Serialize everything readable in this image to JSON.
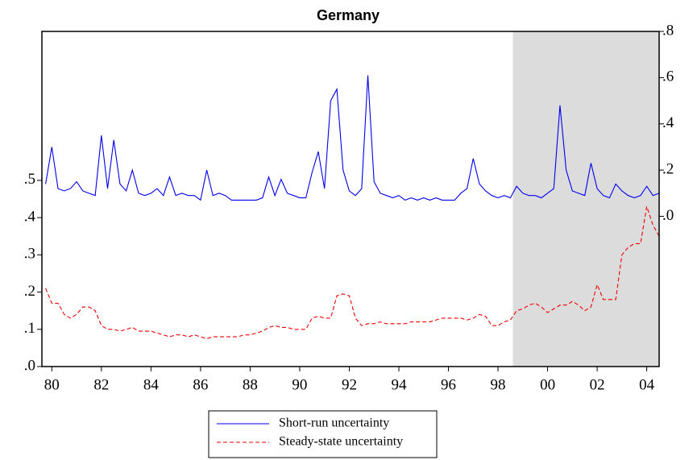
{
  "chart_data": {
    "type": "line",
    "title": "Germany",
    "x": [
      1979.75,
      1980,
      1980.25,
      1980.5,
      1980.75,
      1981,
      1981.25,
      1981.5,
      1981.75,
      1982,
      1982.25,
      1982.5,
      1982.75,
      1983,
      1983.25,
      1983.5,
      1983.75,
      1984,
      1984.25,
      1984.5,
      1984.75,
      1985,
      1985.25,
      1985.5,
      1985.75,
      1986,
      1986.25,
      1986.5,
      1986.75,
      1987,
      1987.25,
      1987.5,
      1987.75,
      1988,
      1988.25,
      1988.5,
      1988.75,
      1989,
      1989.25,
      1989.5,
      1989.75,
      1990,
      1990.25,
      1990.5,
      1990.75,
      1991,
      1991.25,
      1991.5,
      1991.75,
      1992,
      1992.25,
      1992.5,
      1992.75,
      1993,
      1993.25,
      1993.5,
      1993.75,
      1994,
      1994.25,
      1994.5,
      1994.75,
      1995,
      1995.25,
      1995.5,
      1995.75,
      1996,
      1996.25,
      1996.5,
      1996.75,
      1997,
      1997.25,
      1997.5,
      1997.75,
      1998,
      1998.25,
      1998.5,
      1998.75,
      1999,
      1999.25,
      1999.5,
      1999.75,
      2000,
      2000.25,
      2000.5,
      2000.75,
      2001,
      2001.25,
      2001.5,
      2001.75,
      2002,
      2002.25,
      2002.5,
      2002.75,
      2003,
      2003.25,
      2003.5,
      2003.75,
      2004,
      2004.25,
      2004.5
    ],
    "series": [
      {
        "name": "Short-run uncertainty",
        "color": "#0000ee",
        "axis": "y2",
        "dash": false,
        "values": [
          0.14,
          0.3,
          0.12,
          0.11,
          0.12,
          0.15,
          0.11,
          0.1,
          0.09,
          0.35,
          0.12,
          0.33,
          0.14,
          0.11,
          0.2,
          0.1,
          0.09,
          0.1,
          0.12,
          0.09,
          0.17,
          0.09,
          0.1,
          0.09,
          0.09,
          0.07,
          0.2,
          0.09,
          0.1,
          0.09,
          0.07,
          0.07,
          0.07,
          0.07,
          0.07,
          0.08,
          0.17,
          0.09,
          0.16,
          0.1,
          0.09,
          0.08,
          0.08,
          0.19,
          0.28,
          0.12,
          0.5,
          0.55,
          0.2,
          0.11,
          0.09,
          0.12,
          0.61,
          0.15,
          0.1,
          0.09,
          0.08,
          0.09,
          0.07,
          0.08,
          0.07,
          0.08,
          0.07,
          0.08,
          0.07,
          0.07,
          0.07,
          0.1,
          0.12,
          0.25,
          0.14,
          0.11,
          0.09,
          0.08,
          0.09,
          0.08,
          0.13,
          0.1,
          0.09,
          0.09,
          0.08,
          0.1,
          0.12,
          0.48,
          0.2,
          0.11,
          0.1,
          0.09,
          0.23,
          0.12,
          0.09,
          0.08,
          0.14,
          0.11,
          0.09,
          0.08,
          0.09,
          0.13,
          0.09,
          0.1
        ]
      },
      {
        "name": "Steady-state uncertainty",
        "color": "#ee0000",
        "dash": true,
        "values": [
          0.21,
          0.17,
          0.17,
          0.14,
          0.13,
          0.14,
          0.16,
          0.16,
          0.15,
          0.11,
          0.1,
          0.1,
          0.095,
          0.1,
          0.105,
          0.095,
          0.095,
          0.095,
          0.09,
          0.085,
          0.08,
          0.085,
          0.085,
          0.08,
          0.085,
          0.08,
          0.075,
          0.08,
          0.08,
          0.08,
          0.08,
          0.08,
          0.085,
          0.085,
          0.09,
          0.095,
          0.105,
          0.11,
          0.105,
          0.105,
          0.1,
          0.1,
          0.1,
          0.13,
          0.135,
          0.13,
          0.13,
          0.19,
          0.195,
          0.19,
          0.13,
          0.11,
          0.115,
          0.115,
          0.12,
          0.115,
          0.115,
          0.115,
          0.115,
          0.12,
          0.12,
          0.12,
          0.12,
          0.125,
          0.13,
          0.13,
          0.13,
          0.13,
          0.125,
          0.13,
          0.14,
          0.135,
          0.11,
          0.11,
          0.12,
          0.125,
          0.15,
          0.155,
          0.165,
          0.17,
          0.16,
          0.145,
          0.155,
          0.165,
          0.165,
          0.175,
          0.165,
          0.15,
          0.16,
          0.22,
          0.18,
          0.18,
          0.18,
          0.3,
          0.32,
          0.33,
          0.33,
          0.43,
          0.38,
          0.35
        ]
      }
    ],
    "xlim": [
      1979.6,
      2004.5
    ],
    "xticks": [
      {
        "value": 1980,
        "label": "80"
      },
      {
        "value": 1982,
        "label": "82"
      },
      {
        "value": 1984,
        "label": "84"
      },
      {
        "value": 1986,
        "label": "86"
      },
      {
        "value": 1988,
        "label": "88"
      },
      {
        "value": 1990,
        "label": "90"
      },
      {
        "value": 1992,
        "label": "92"
      },
      {
        "value": 1994,
        "label": "94"
      },
      {
        "value": 1996,
        "label": "96"
      },
      {
        "value": 1998,
        "label": "98"
      },
      {
        "value": 2000,
        "label": "00"
      },
      {
        "value": 2002,
        "label": "02"
      },
      {
        "value": 2004,
        "label": "04"
      }
    ],
    "ylim": [
      0,
      0.9
    ],
    "yticks": [
      {
        "value": 0,
        "label": ".0"
      },
      {
        "value": 0.1,
        "label": ".1"
      },
      {
        "value": 0.2,
        "label": ".2"
      },
      {
        "value": 0.3,
        "label": ".3"
      },
      {
        "value": 0.4,
        "label": ".4"
      },
      {
        "value": 0.5,
        "label": ".5"
      }
    ],
    "y2lim": [
      -0.65,
      0.8
    ],
    "y2ticks": [
      {
        "value": 0,
        "label": ".0"
      },
      {
        "value": 0.2,
        "label": ".2"
      },
      {
        "value": 0.4,
        "label": ".4"
      },
      {
        "value": 0.6,
        "label": ".6"
      },
      {
        "value": 0.8,
        "label": ".8"
      }
    ],
    "shaded_range": [
      1998.6,
      2004.5
    ],
    "shade_color": "#dcdcdc",
    "legend": "bottom"
  }
}
